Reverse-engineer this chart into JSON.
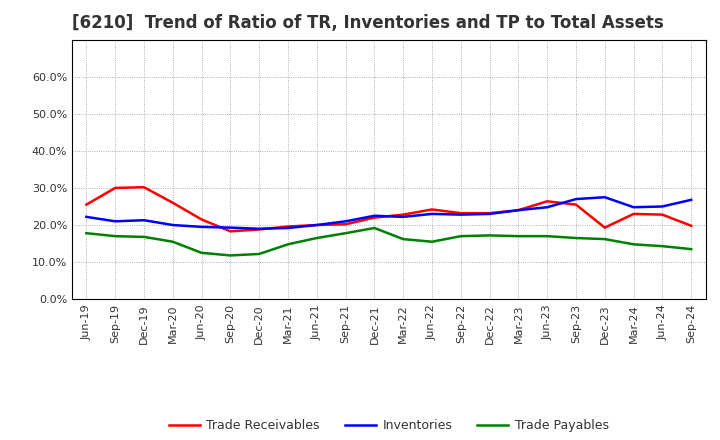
{
  "title": "[6210]  Trend of Ratio of TR, Inventories and TP to Total Assets",
  "ylim": [
    0.0,
    0.7
  ],
  "yticks": [
    0.0,
    0.1,
    0.2,
    0.3,
    0.4,
    0.5,
    0.6
  ],
  "ytick_labels": [
    "0.0%",
    "10.0%",
    "20.0%",
    "30.0%",
    "40.0%",
    "50.0%",
    "60.0%"
  ],
  "x_labels": [
    "Jun-19",
    "Sep-19",
    "Dec-19",
    "Mar-20",
    "Jun-20",
    "Sep-20",
    "Dec-20",
    "Mar-21",
    "Jun-21",
    "Sep-21",
    "Dec-21",
    "Mar-22",
    "Jun-22",
    "Sep-22",
    "Dec-22",
    "Mar-23",
    "Jun-23",
    "Sep-23",
    "Dec-23",
    "Mar-24",
    "Jun-24",
    "Sep-24"
  ],
  "trade_receivables": [
    0.255,
    0.3,
    0.302,
    0.26,
    0.215,
    0.183,
    0.188,
    0.196,
    0.2,
    0.202,
    0.22,
    0.228,
    0.242,
    0.232,
    0.232,
    0.24,
    0.264,
    0.255,
    0.193,
    0.23,
    0.228,
    0.198
  ],
  "inventories": [
    0.222,
    0.21,
    0.213,
    0.2,
    0.195,
    0.193,
    0.19,
    0.192,
    0.2,
    0.21,
    0.225,
    0.222,
    0.23,
    0.228,
    0.23,
    0.24,
    0.248,
    0.27,
    0.275,
    0.248,
    0.25,
    0.268
  ],
  "trade_payables": [
    0.178,
    0.17,
    0.168,
    0.155,
    0.125,
    0.118,
    0.122,
    0.148,
    0.165,
    0.178,
    0.192,
    0.162,
    0.155,
    0.17,
    0.172,
    0.17,
    0.17,
    0.165,
    0.162,
    0.148,
    0.143,
    0.135
  ],
  "tr_color": "#ff0000",
  "inv_color": "#0000ff",
  "tp_color": "#008000",
  "line_width": 1.8,
  "legend_labels": [
    "Trade Receivables",
    "Inventories",
    "Trade Payables"
  ],
  "background_color": "#ffffff",
  "grid_color": "#999999",
  "title_fontsize": 12,
  "tick_fontsize": 8,
  "title_color": "#333333"
}
